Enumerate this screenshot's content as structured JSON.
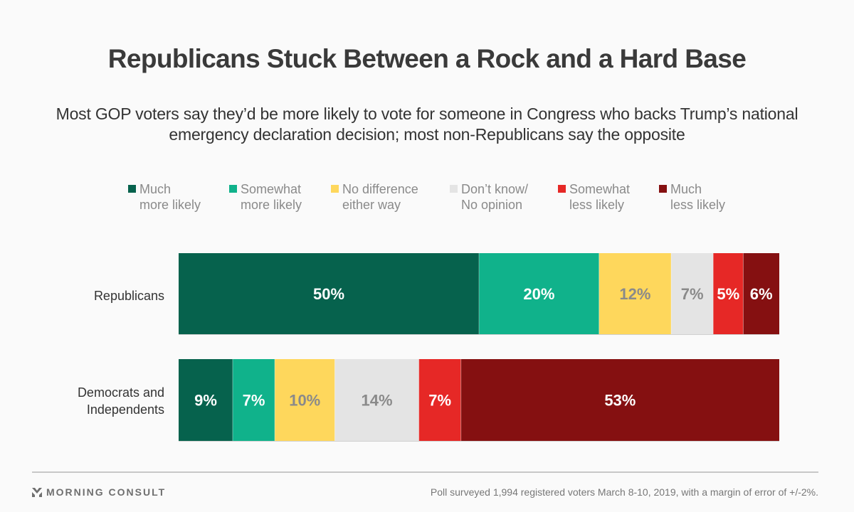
{
  "header": {
    "title": "Republicans Stuck Between a Rock and a Hard Base",
    "subtitle": "Most GOP voters say they’d be more likely to vote for someone in Congress who backs Trump’s national emergency declaration decision; most non-Republicans say the opposite"
  },
  "footer": {
    "brand": "MORNING CONSULT",
    "brand_icon": "morning-consult-logo-icon",
    "note": "Poll surveyed 1,994 registered voters March 8-10, 2019, with a margin of error of +/-2%."
  },
  "chart_data": {
    "type": "bar",
    "orientation": "horizontal",
    "stacked": true,
    "title": "Republicans Stuck Between a Rock and a Hard Base",
    "subtitle": "Most GOP voters say they’d be more likely to vote for someone in Congress who backs Trump’s national emergency declaration decision; most non-Republicans say the opposite",
    "xlabel": "",
    "ylabel": "",
    "xlim": [
      0,
      100
    ],
    "grid": false,
    "legend_position": "top",
    "categories": [
      "Republicans",
      "Democrats and\nIndependents"
    ],
    "series": [
      {
        "name": "Much\nmore likely",
        "color": "#06624d",
        "label_color": "#ffffff",
        "values": [
          50,
          9
        ]
      },
      {
        "name": "Somewhat\nmore likely",
        "color": "#10b28b",
        "label_color": "#ffffff",
        "values": [
          20,
          7
        ]
      },
      {
        "name": "No difference\neither way",
        "color": "#fed75c",
        "label_color": "#8a8a8a",
        "values": [
          12,
          10
        ]
      },
      {
        "name": "Don’t know/\nNo opinion",
        "color": "#e4e4e4",
        "label_color": "#8a8a8a",
        "values": [
          7,
          14
        ]
      },
      {
        "name": "Somewhat\nless likely",
        "color": "#e62826",
        "label_color": "#ffffff",
        "values": [
          5,
          7
        ]
      },
      {
        "name": "Much\nless likely",
        "color": "#851011",
        "label_color": "#ffffff",
        "values": [
          6,
          53
        ]
      }
    ],
    "value_suffix": "%"
  }
}
